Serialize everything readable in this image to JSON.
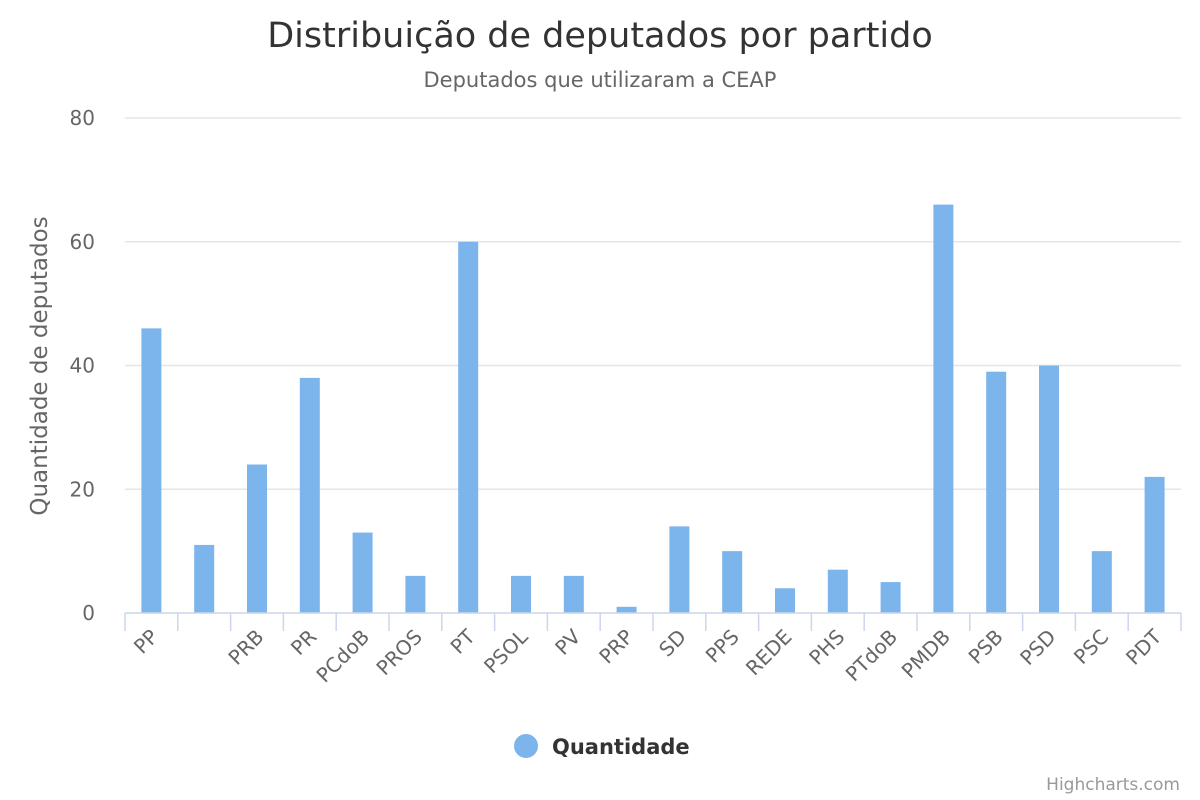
{
  "chart_data": {
    "type": "bar",
    "title": "Distribuição de deputados por partido",
    "subtitle": "Deputados que utilizaram a CEAP",
    "ylabel": "Quantidade de deputados",
    "xlabel": "",
    "ylim": [
      0,
      80
    ],
    "yticks": [
      "0",
      "20",
      "40",
      "60",
      "80"
    ],
    "grid": true,
    "legend_position": "bottom-center",
    "categories": [
      "PP",
      "",
      "PRB",
      "PR",
      "PCdoB",
      "PROS",
      "PT",
      "PSOL",
      "PV",
      "PRP",
      "SD",
      "PPS",
      "REDE",
      "PHS",
      "PTdoB",
      "PMDB",
      "PSB",
      "PSD",
      "PSC",
      "PDT"
    ],
    "series": [
      {
        "name": "Quantidade",
        "color": "#7cb5ec",
        "values": [
          46,
          11,
          24,
          38,
          13,
          6,
          60,
          6,
          6,
          1,
          14,
          10,
          4,
          7,
          5,
          66,
          39,
          40,
          10,
          22
        ]
      }
    ]
  },
  "credits": "Highcharts.com"
}
